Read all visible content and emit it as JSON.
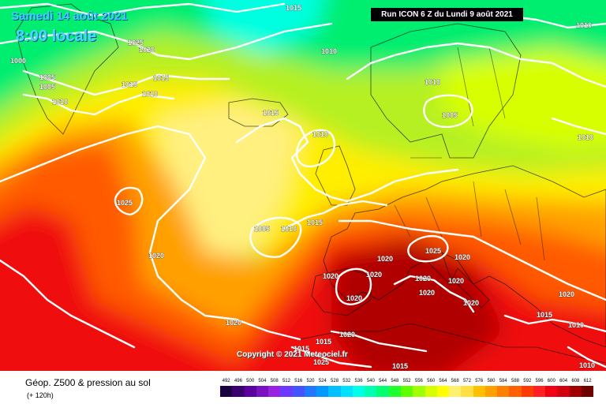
{
  "header": {
    "date": "Samedi 14 août 2021",
    "time": "8:00 locale",
    "run": "Run ICON 6 Z du Lundi 9 août 2021"
  },
  "copyright": "Copyright © 2021 Meteociel.fr",
  "parameter": {
    "title": "Géop. Z500 & pression au sol",
    "subtitle": "(+ 120h)"
  },
  "isobar_labels": [
    "1015",
    "1025",
    "1020",
    "1010",
    "1000",
    "1005",
    "1005",
    "1010",
    "1015",
    "1015",
    "1010",
    "1015",
    "1010",
    "1010",
    "1005",
    "1010",
    "1010",
    "1025",
    "1005",
    "1010",
    "1015",
    "1020",
    "1020",
    "1025",
    "1020",
    "1020",
    "1020",
    "1020",
    "1020",
    "1020",
    "1020",
    "1020",
    "1020",
    "1015",
    "1010",
    "1015",
    "1020",
    "1020",
    "1015",
    "1025",
    "1015",
    "1010"
  ],
  "legend": {
    "values": [
      492,
      496,
      500,
      504,
      508,
      512,
      516,
      520,
      524,
      528,
      532,
      536,
      540,
      544,
      548,
      552,
      556,
      560,
      564,
      568,
      572,
      576,
      580,
      584,
      588,
      592,
      596,
      600,
      604,
      608,
      612
    ],
    "colors": [
      "#1a0040",
      "#3a0070",
      "#5a00a0",
      "#7a10c0",
      "#9a20e0",
      "#6b39ff",
      "#4455ff",
      "#2277ff",
      "#0099ff",
      "#00c0ff",
      "#00e0ff",
      "#00ffe8",
      "#00ffb0",
      "#00ff70",
      "#20ff30",
      "#60ff00",
      "#a0ff00",
      "#d8ff00",
      "#ffff00",
      "#fff070",
      "#ffe040",
      "#ffc000",
      "#ffa000",
      "#ff8000",
      "#ff6000",
      "#ff3c00",
      "#ff2020",
      "#f00010",
      "#d00010",
      "#a00000",
      "#700000"
    ]
  },
  "colors": {
    "banner": "#000000",
    "title_text": "#3fd0ff",
    "isobar": "#ffffff"
  }
}
